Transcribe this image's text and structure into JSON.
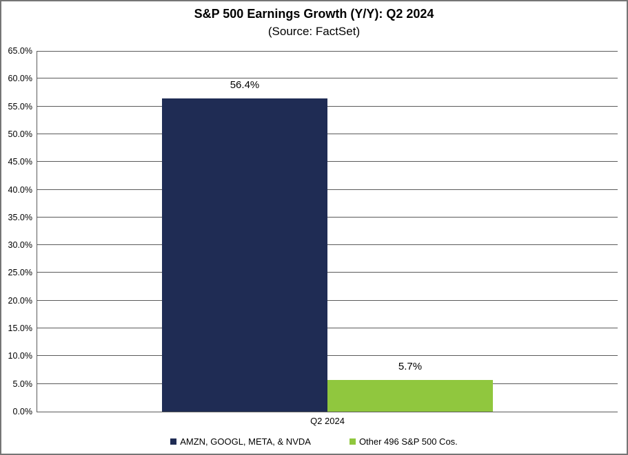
{
  "title": "S&P 500 Earnings Growth (Y/Y): Q2 2024",
  "subtitle": "(Source: FactSet)",
  "chart_data": {
    "type": "bar",
    "title": "S&P 500 Earnings Growth (Y/Y): Q2 2024",
    "subtitle": "(Source: FactSet)",
    "categories": [
      "Q2 2024"
    ],
    "series": [
      {
        "name": "AMZN, GOOGL, META, & NVDA",
        "values": [
          56.4
        ],
        "data_labels": [
          "56.4%"
        ],
        "color": "#1F2C54"
      },
      {
        "name": "Other 496 S&P 500 Cos.",
        "values": [
          5.7
        ],
        "data_labels": [
          "5.7%"
        ],
        "color": "#90C73E"
      }
    ],
    "xlabel": "",
    "ylabel": "",
    "ylim": [
      0,
      65
    ],
    "yticks": [
      {
        "value": 0,
        "label": "0.0%"
      },
      {
        "value": 5,
        "label": "5.0%"
      },
      {
        "value": 10,
        "label": "10.0%"
      },
      {
        "value": 15,
        "label": "15.0%"
      },
      {
        "value": 20,
        "label": "20.0%"
      },
      {
        "value": 25,
        "label": "25.0%"
      },
      {
        "value": 30,
        "label": "30.0%"
      },
      {
        "value": 35,
        "label": "35.0%"
      },
      {
        "value": 40,
        "label": "40.0%"
      },
      {
        "value": 45,
        "label": "45.0%"
      },
      {
        "value": 50,
        "label": "50.0%"
      },
      {
        "value": 55,
        "label": "55.0%"
      },
      {
        "value": 60,
        "label": "60.0%"
      },
      {
        "value": 65,
        "label": "65.0%"
      }
    ],
    "grid": "horizontal",
    "legend_position": "bottom"
  },
  "colors": {
    "bar_navy": "#1F2C54",
    "bar_green": "#90C73E",
    "gridline": "#595959",
    "axis_line": "#595959",
    "frame_border": "#757575",
    "background": "#FFFFFF",
    "text": "#000000"
  }
}
